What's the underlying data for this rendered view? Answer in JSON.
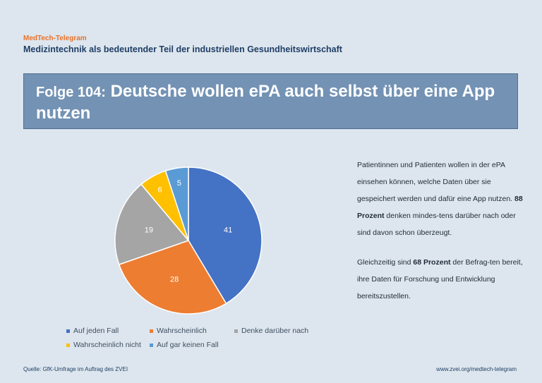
{
  "header": {
    "brand": "MedTech-Telegram",
    "subtitle": "Medizintechnik als bedeutender Teil der industriellen Gesundheitswirtschaft"
  },
  "banner": {
    "prefix": "Folge 104:",
    "title": "Deutsche wollen ePA auch selbst über eine App nutzen"
  },
  "chart_data": {
    "type": "pie",
    "categories": [
      "Auf jeden Fall",
      "Wahrscheinlich",
      "Denke darüber nach",
      "Wahrscheinlich nicht",
      "Auf gar keinen Fall"
    ],
    "values": [
      41,
      28,
      19,
      6,
      5
    ],
    "colors": [
      "#4472c4",
      "#ed7d31",
      "#a5a5a5",
      "#ffc000",
      "#5b9bd5"
    ],
    "legend_position": "bottom"
  },
  "text": {
    "p1_before": "Patientinnen und Patienten wollen in der ePA einsehen können, welche Daten über sie gespeichert werden und dafür eine App nutzen. ",
    "p1_bold": "88 Prozent",
    "p1_after": " denken mindes-tens darüber nach oder sind davon schon überzeugt.",
    "p2_before": "Gleichzeitig sind ",
    "p2_bold": "68 Prozent",
    "p2_after": " der Befrag-ten bereit, ihre Daten für Forschung und Entwicklung bereitszustellen."
  },
  "footer": {
    "source": "Quelle: GfK-Umfrage im Auftrag des ZVEI",
    "url": "www.zvei.org/medtech-telegram"
  }
}
